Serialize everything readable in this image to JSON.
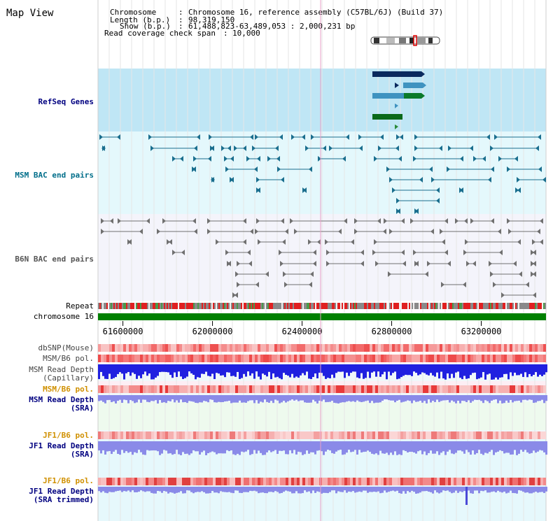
{
  "page": {
    "title": "Map View",
    "header": {
      "chromosome_label": "Chromosome",
      "chromosome_value": "Chromosome 16, reference assembly (C57BL/6J) (Build 37)",
      "length_label": "Length (b.p.)",
      "length_value": "98,319,150",
      "show_label": "Show (b.p.)",
      "show_value": "61,488,823-63,489,053 : 2,000,231 bp",
      "coverage_label": "Read coverage check span",
      "coverage_value": "10,000"
    },
    "colors": {
      "refseq_bg": "#bfe6f5",
      "msm_bac_bg": "#e4f8fc",
      "b6n_bac_bg": "#f4f4fb",
      "label_blue": "#000080",
      "label_teal": "#006e8a",
      "label_gray": "#555555",
      "label_orange": "#d09000",
      "chromosome_bar": "#008000",
      "feature_teal": "#1a6e8e",
      "feature_gray": "#707070",
      "depth_capillary": "#2020e0",
      "depth_sra": "#8a8ae8",
      "highlight_line": "#e8a0c8"
    },
    "tracks": {
      "refseq": "RefSeq Genes",
      "msm_bac": "MSM BAC end pairs",
      "b6n_bac": "B6N BAC end pairs",
      "repeat": "Repeat",
      "chromosome": "chromosome 16",
      "dbsnp": "dbSNP(Mouse)",
      "msm_b6_pol": "MSM/B6 pol.",
      "msm_depth_cap_1": "MSM Read Depth",
      "msm_depth_cap_2": "(Capillary)",
      "msm_b6_pol_2": "MSM/B6 pol.",
      "msm_depth_sra_1": "MSM Read Depth",
      "msm_depth_sra_2": "(SRA)",
      "jf1_pol": "JF1/B6 pol.",
      "jf1_depth_sra_1": "JF1 Read Depth",
      "jf1_depth_sra_2": "(SRA)",
      "jf1_pol_2": "JF1/B6 pol.",
      "jf1_depth_trim_1": "JF1 Read Depth",
      "jf1_depth_trim_2": "(SRA trimmed)"
    },
    "axis": {
      "ticks": [
        "61600000",
        "62000000",
        "62400000",
        "62800000",
        "63200000"
      ],
      "values": [
        61600000,
        62000000,
        62400000,
        62800000,
        63200000
      ],
      "start": 61488823,
      "end": 63489053
    }
  }
}
